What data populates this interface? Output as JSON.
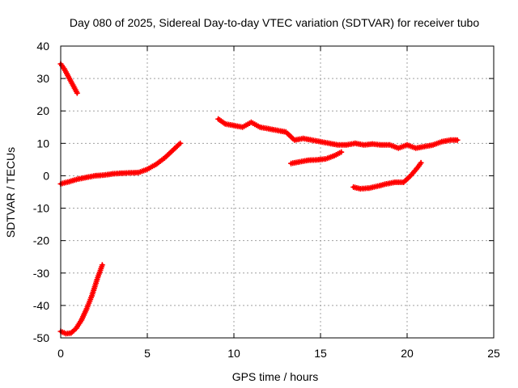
{
  "chart_data": {
    "type": "scatter",
    "title": "Day 080 of 2025, Sidereal Day-to-day VTEC variation (SDTVAR) for receiver tubo",
    "xlabel": "GPS time / hours",
    "ylabel": "SDTVAR / TECUs",
    "xlim": [
      0,
      25
    ],
    "ylim": [
      -50,
      40
    ],
    "xticks": [
      "0",
      "5",
      "10",
      "15",
      "20",
      "25"
    ],
    "xtick_values": [
      0,
      5,
      10,
      15,
      20,
      25
    ],
    "yticks": [
      "-50",
      "-40",
      "-30",
      "-20",
      "-10",
      "0",
      "10",
      "20",
      "30",
      "40"
    ],
    "ytick_values": [
      -50,
      -40,
      -30,
      -20,
      -10,
      0,
      10,
      20,
      30,
      40
    ],
    "grid": true,
    "marker": "plus",
    "color": "#ff0000",
    "series": [
      {
        "name": "arc-1",
        "x": [
          0.0,
          0.2,
          0.4,
          0.6,
          0.8,
          0.95
        ],
        "y": [
          34.5,
          33.0,
          31.0,
          29.0,
          27.0,
          25.5
        ]
      },
      {
        "name": "arc-2",
        "x": [
          0.0,
          0.5,
          1.0,
          1.5,
          2.0,
          2.5,
          3.0,
          3.5,
          4.0,
          4.5,
          5.0,
          5.5,
          6.0,
          6.5,
          6.9
        ],
        "y": [
          -2.5,
          -1.8,
          -1.0,
          -0.5,
          0.0,
          0.2,
          0.6,
          0.8,
          0.9,
          1.0,
          2.0,
          3.5,
          5.5,
          8.0,
          10.0
        ]
      },
      {
        "name": "arc-3",
        "x": [
          0.0,
          0.3,
          0.6,
          0.9,
          1.2,
          1.5,
          1.8,
          2.1,
          2.4
        ],
        "y": [
          -48.0,
          -48.7,
          -48.5,
          -47.0,
          -44.5,
          -41.0,
          -37.0,
          -32.0,
          -27.5
        ]
      },
      {
        "name": "arc-4",
        "x": [
          9.1,
          9.5,
          10.0,
          10.5,
          11.0,
          11.5,
          12.0,
          12.5,
          13.0,
          13.5,
          14.0,
          14.5,
          15.0,
          15.5,
          16.0,
          16.5,
          17.0,
          17.5,
          18.0,
          18.5,
          19.0,
          19.5,
          20.0,
          20.5,
          21.0,
          21.5,
          22.0,
          22.5,
          22.9
        ],
        "y": [
          17.5,
          16.0,
          15.5,
          15.0,
          16.5,
          15.0,
          14.5,
          14.0,
          13.5,
          11.0,
          11.5,
          11.0,
          10.5,
          10.0,
          9.5,
          9.5,
          10.0,
          9.5,
          9.8,
          9.5,
          9.5,
          8.5,
          9.5,
          8.5,
          9.0,
          9.5,
          10.5,
          11.0,
          11.0
        ]
      },
      {
        "name": "arc-5",
        "x": [
          13.3,
          13.8,
          14.3,
          14.8,
          15.3,
          15.8,
          16.2
        ],
        "y": [
          3.8,
          4.3,
          4.8,
          4.9,
          5.2,
          6.2,
          7.3
        ]
      },
      {
        "name": "arc-6",
        "x": [
          16.9,
          17.3,
          17.8,
          18.3,
          18.8,
          19.3,
          19.8,
          20.2,
          20.6,
          20.8
        ],
        "y": [
          -3.5,
          -4.0,
          -3.8,
          -3.2,
          -2.5,
          -2.0,
          -2.0,
          0.0,
          2.5,
          4.0
        ]
      }
    ]
  }
}
